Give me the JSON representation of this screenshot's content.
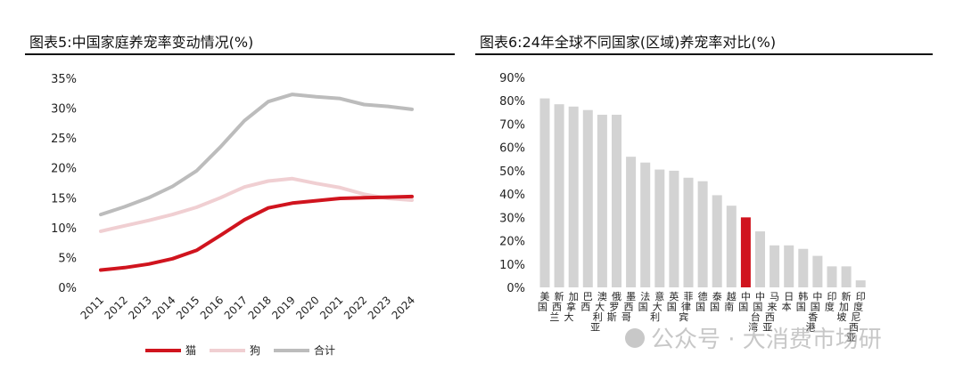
{
  "chart_data": [
    {
      "type": "line",
      "title": "图表5:中国家庭养宠率变动情况(%)",
      "x": [
        "2011",
        "2012",
        "2013",
        "2014",
        "2015",
        "2016",
        "2017",
        "2018",
        "2019",
        "2020",
        "2021",
        "2022",
        "2023",
        "2024"
      ],
      "ylim": [
        0,
        35
      ],
      "yticks": [
        "0%",
        "5%",
        "10%",
        "15%",
        "20%",
        "25%",
        "30%",
        "35%"
      ],
      "grid": false,
      "legend_position": "bottom",
      "series": [
        {
          "name": "猫",
          "color": "#d0141e",
          "values": [
            2.9,
            3.3,
            3.9,
            4.8,
            6.2,
            8.7,
            11.3,
            13.3,
            14.1,
            14.5,
            14.9,
            15.0,
            15.1,
            15.2
          ]
        },
        {
          "name": "狗",
          "color": "#f0cfd2",
          "values": [
            9.4,
            10.3,
            11.2,
            12.2,
            13.4,
            15.0,
            16.8,
            17.8,
            18.2,
            17.4,
            16.7,
            15.6,
            14.9,
            14.6
          ]
        },
        {
          "name": "合计",
          "color": "#bcbcbc",
          "values": [
            12.2,
            13.5,
            15.0,
            16.9,
            19.5,
            23.5,
            27.9,
            31.1,
            32.3,
            31.9,
            31.6,
            30.6,
            30.3,
            29.8
          ]
        }
      ]
    },
    {
      "type": "bar",
      "title": "图表6:24年全球不同国家(区域)养宠率对比(%)",
      "categories": [
        "美国",
        "新西兰",
        "加拿大",
        "巴西",
        "澳大利亚",
        "俄罗斯",
        "墨西哥",
        "法国",
        "意大利",
        "英国",
        "菲律宾",
        "德国",
        "泰国",
        "越南",
        "中国",
        "中国台湾",
        "马来西亚",
        "日本",
        "韩国",
        "中国香港",
        "印度",
        "新加坡",
        "印度尼西亚"
      ],
      "values": [
        81,
        78.5,
        77.5,
        76,
        74,
        74,
        56,
        53.5,
        50.5,
        50,
        47,
        45.5,
        39.5,
        35,
        30,
        24,
        18,
        18,
        16.5,
        13.5,
        9,
        9,
        3
      ],
      "highlight": "中国",
      "colors": {
        "bar": "#d3d3d3",
        "highlight": "#d0141e"
      },
      "ylim": [
        0,
        90
      ],
      "yticks": [
        "0%",
        "10%",
        "20%",
        "30%",
        "40%",
        "50%",
        "60%",
        "70%",
        "80%",
        "90%"
      ],
      "grid": false
    }
  ],
  "watermark": "公众号 · 大消费市场研"
}
